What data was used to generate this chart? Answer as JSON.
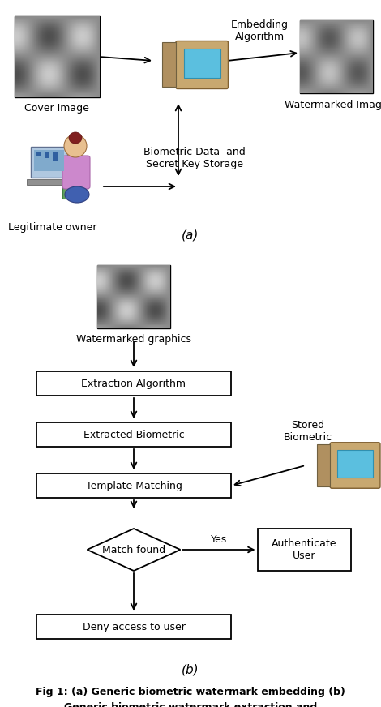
{
  "fig_width": 4.7,
  "fig_height": 8.72,
  "bg_color": "#ffffff",
  "caption_a": "(a)",
  "caption_b": "(b)",
  "fig_caption_line1": "Fig 1: (a) Generic biometric watermark embedding (b)",
  "fig_caption_line2": "Generic biometric watermark extraction and",
  "part_a": {
    "cover_image_label": "Cover Image",
    "watermarked_label": "Watermarked Image",
    "embedding_label": "Embedding\nAlgorithm",
    "biometric_label": "Biometric Data  and\nSecret Key Storage",
    "owner_label": "Legitimate owner"
  },
  "part_b": {
    "wm_graphics_label": "Watermarked graphics",
    "box_labels": [
      "Extraction Algorithm",
      "Extracted Biometric",
      "Template Matching",
      "Deny access to user"
    ],
    "diamond_label": "Match found",
    "auth_label": "Authenticate\nUser",
    "stored_label": "Stored\nBiometric",
    "yes_label": "Yes"
  }
}
